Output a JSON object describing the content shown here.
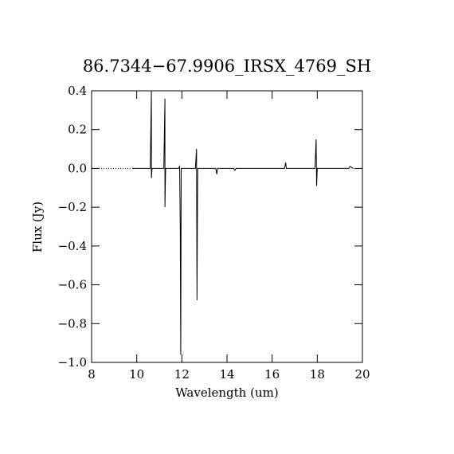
{
  "chart_data": {
    "type": "line",
    "title": "86.7344−67.9906_IRSX_4769_SH",
    "x_label": "Wavelength (um)",
    "y_label": "Flux (Jy)",
    "xlim": [
      8,
      20
    ],
    "ylim": [
      -1.0,
      0.4
    ],
    "xticks": [
      8,
      10,
      12,
      14,
      16,
      18,
      20
    ],
    "yticks": [
      {
        "value": -1.0,
        "label": "−1.0"
      },
      {
        "value": -0.8,
        "label": "−0.8"
      },
      {
        "value": -0.6,
        "label": "−0.6"
      },
      {
        "value": -0.4,
        "label": "−0.4"
      },
      {
        "value": -0.2,
        "label": "−0.2"
      },
      {
        "value": 0.0,
        "label": "0.0"
      },
      {
        "value": 0.2,
        "label": "0.2"
      },
      {
        "value": 0.4,
        "label": "0.4"
      }
    ],
    "series": [
      {
        "color": "#000000",
        "dash": true,
        "x": [
          8,
          9.8
        ],
        "values": [
          0,
          0
        ]
      },
      {
        "color": "#000000",
        "dash": false,
        "x": [
          9.8,
          10.6,
          10.65,
          10.65,
          10.68,
          10.7,
          11.2,
          11.25,
          11.25,
          11.28,
          11.85,
          11.9,
          11.93,
          11.95,
          11.97,
          12.0,
          12.6,
          12.65,
          12.67,
          12.7,
          13.5,
          13.55,
          13.58,
          14.3,
          14.35,
          14.4,
          16.55,
          16.6,
          16.63,
          17.9,
          17.95,
          17.97,
          18.0,
          19.4,
          19.45,
          19.6
        ],
        "values": [
          0,
          0,
          0.4,
          -0.05,
          0,
          0,
          0,
          0.36,
          -0.2,
          0,
          0,
          0.01,
          -0.31,
          -0.96,
          0,
          0,
          0,
          0.1,
          -0.68,
          0,
          0,
          -0.03,
          0,
          0,
          -0.01,
          0,
          0,
          0.03,
          0,
          0,
          0.15,
          -0.09,
          0,
          0,
          0.01,
          0
        ]
      }
    ]
  }
}
